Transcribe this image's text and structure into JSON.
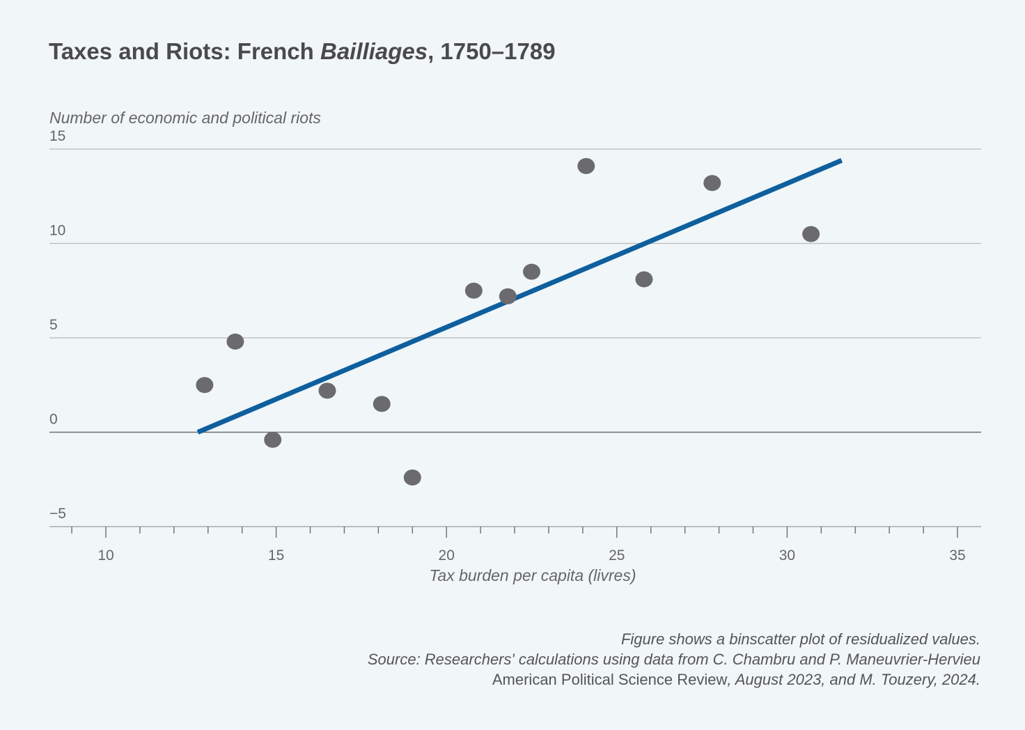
{
  "title_main": "Taxes and Riots: French ",
  "title_italic": "Bailliages",
  "title_tail": ", 1750–1789",
  "chart_data": {
    "type": "scatter",
    "title": "Taxes and Riots: French Bailliages, 1750–1789",
    "xlabel": "Tax burden per capita (livres)",
    "ylabel": "Number of economic and political riots",
    "xlim": [
      8.5,
      35.7
    ],
    "ylim": [
      -5,
      15
    ],
    "xticks": [
      10,
      15,
      20,
      25,
      30,
      35
    ],
    "xtick_labels": [
      "10",
      "15",
      "20",
      "25",
      "30",
      "35"
    ],
    "yticks": [
      15,
      10,
      5,
      0,
      -5
    ],
    "ytick_labels": [
      "15",
      "10",
      "5",
      "0",
      "−5"
    ],
    "grid": "horizontal",
    "dot_color": "#6b6b6d",
    "line_color": "#0e5f9e",
    "points": [
      {
        "x": 12.9,
        "y": 2.5
      },
      {
        "x": 13.8,
        "y": 4.8
      },
      {
        "x": 14.9,
        "y": -0.4
      },
      {
        "x": 16.5,
        "y": 2.2
      },
      {
        "x": 18.1,
        "y": 1.5
      },
      {
        "x": 19.0,
        "y": -2.4
      },
      {
        "x": 20.8,
        "y": 7.5
      },
      {
        "x": 21.8,
        "y": 7.2
      },
      {
        "x": 22.5,
        "y": 8.5
      },
      {
        "x": 24.1,
        "y": 14.1
      },
      {
        "x": 25.8,
        "y": 8.1
      },
      {
        "x": 27.8,
        "y": 13.2
      },
      {
        "x": 30.7,
        "y": 10.5
      }
    ],
    "fit_line": {
      "x": [
        12.7,
        31.6
      ],
      "y": [
        0.0,
        14.4
      ]
    }
  },
  "footer": {
    "line1": "Figure shows a binscatter plot of residualized values.",
    "line2": "Source: Researchers' calculations using data from C. Chambru and P. Maneuvrier-Hervieu",
    "line3a": "American Political Science Review",
    "line3b": ", August 2023, and M. Touzery, 2024."
  }
}
